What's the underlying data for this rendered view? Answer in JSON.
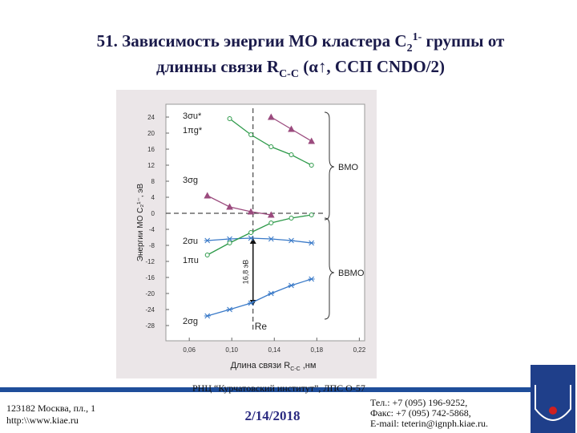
{
  "title": {
    "line1": [
      "51. Зависимость энергии МО кластера C",
      "2",
      "1-",
      " группы от"
    ],
    "line2": [
      "длинны связи R",
      "C-C",
      " (α↑, ССП CNDO/2)"
    ]
  },
  "chart_data": {
    "type": "line",
    "y_label": "Энергии МО C₂¹⁻, эВ",
    "x_label": [
      "Длина связи  R",
      "C-C",
      " ,нм"
    ],
    "xlim": [
      0.038,
      0.225
    ],
    "ylim": [
      -31.8,
      27.2
    ],
    "xticks": [
      {
        "value": 0.06,
        "label": "0,06"
      },
      {
        "value": 0.1,
        "label": "0,10"
      },
      {
        "value": 0.14,
        "label": "0,14"
      },
      {
        "value": 0.18,
        "label": "0,18"
      },
      {
        "value": 0.22,
        "label": "0,22"
      }
    ],
    "yticks": [
      24,
      20,
      16,
      12,
      8,
      4,
      0,
      -4,
      -8,
      -12,
      -16,
      -20,
      -24,
      -28
    ],
    "series": [
      {
        "name": "3σu*",
        "color": "#9b4b7e",
        "marker": "triangle",
        "x": [
          0.137,
          0.156,
          0.175
        ],
        "values": [
          24,
          21,
          18
        ]
      },
      {
        "name": "1πg*",
        "color": "#2e9a4a",
        "marker": "circle",
        "x": [
          0.098,
          0.118,
          0.137,
          0.156,
          0.175
        ],
        "values": [
          23.6,
          19.6,
          16.6,
          14.6,
          12
        ]
      },
      {
        "name": "3σg",
        "color": "#9b4b7e",
        "marker": "triangle",
        "x": [
          0.077,
          0.098,
          0.118,
          0.137
        ],
        "values": [
          4.4,
          1.6,
          0.4,
          -0.4
        ]
      },
      {
        "name": "2σu",
        "color": "#3a7ac8",
        "marker": "star",
        "x": [
          0.077,
          0.098,
          0.118,
          0.137,
          0.156,
          0.175
        ],
        "values": [
          -6.8,
          -6.4,
          -6.2,
          -6.4,
          -6.8,
          -7.4
        ]
      },
      {
        "name": "1πu",
        "color": "#2e9a4a",
        "marker": "circle",
        "x": [
          0.077,
          0.098,
          0.118,
          0.137,
          0.156,
          0.175
        ],
        "values": [
          -10.4,
          -7.4,
          -4.8,
          -2.4,
          -1.2,
          -0.4
        ]
      },
      {
        "name": "2σg",
        "color": "#3a7ac8",
        "marker": "star",
        "x": [
          0.077,
          0.098,
          0.118,
          0.137,
          0.156,
          0.175
        ],
        "values": [
          -25.6,
          -24,
          -22.4,
          -20,
          -18,
          -16.4
        ]
      }
    ],
    "re": {
      "label": "Re",
      "x": 0.12
    },
    "gap": {
      "label": "16,8 эВ",
      "from": -6.2,
      "to": -23
    },
    "groups": [
      "ВМО",
      "ВВМО"
    ]
  },
  "footer": {
    "org": "РНЦ “Курчатовский институт”,  ЛПС О-57",
    "address": [
      "123182 Москва, пл., 1",
      "http:\\\\www.kiae.ru"
    ],
    "date": "2/14/2018",
    "contacts": [
      "Тел.:     +7 (095) 196-9252,",
      "Факс:  +7 (095) 742-5868,",
      "E-mail:  teterin@ignph.kiae.ru."
    ]
  }
}
